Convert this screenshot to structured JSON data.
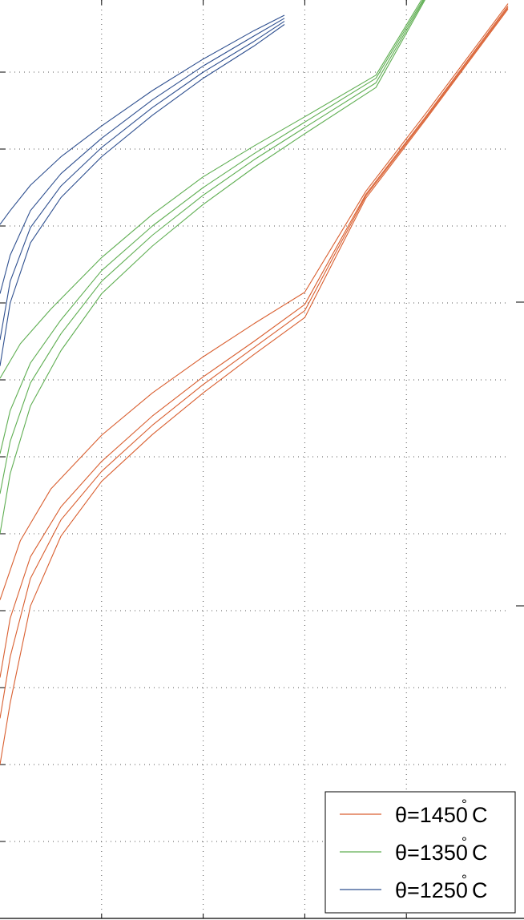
{
  "chart_data": {
    "type": "line",
    "title": "",
    "xlabel": "",
    "ylabel": "",
    "xlim": [
      0,
      5
    ],
    "ylim": [
      0,
      12
    ],
    "grid": true,
    "legend_position": "bottom-right",
    "legend": [
      {
        "label_prefix": "θ=1450",
        "degree_mark": "°",
        "label_suffix": "C",
        "color": "#d95f30"
      },
      {
        "label_prefix": "θ=1350",
        "degree_mark": "°",
        "label_suffix": "C",
        "color": "#5fae52"
      },
      {
        "label_prefix": "θ=1250",
        "degree_mark": "°",
        "label_suffix": "C",
        "color": "#2e4f8f"
      }
    ],
    "series": [
      {
        "group": "θ=1450°C",
        "color": "#d95f30",
        "points": [
          [
            0.0,
            4.14
          ],
          [
            0.2,
            4.91
          ],
          [
            0.5,
            5.58
          ],
          [
            1.0,
            6.28
          ],
          [
            1.5,
            6.83
          ],
          [
            2.0,
            7.3
          ],
          [
            2.5,
            7.73
          ],
          [
            3.0,
            8.14
          ],
          [
            3.6,
            9.45
          ],
          [
            4.2,
            10.48
          ],
          [
            5.0,
            11.89
          ]
        ]
      },
      {
        "group": "θ=1450°C",
        "color": "#d95f30",
        "points": [
          [
            0.0,
            3.13
          ],
          [
            0.1,
            3.9
          ],
          [
            0.3,
            4.7
          ],
          [
            0.6,
            5.35
          ],
          [
            1.0,
            5.94
          ],
          [
            1.5,
            6.53
          ],
          [
            2.0,
            7.04
          ],
          [
            2.5,
            7.5
          ],
          [
            3.0,
            7.98
          ],
          [
            3.6,
            9.41
          ],
          [
            4.2,
            10.44
          ],
          [
            5.0,
            11.86
          ]
        ]
      },
      {
        "group": "θ=1450°C",
        "color": "#d95f30",
        "points": [
          [
            0.0,
            2.6
          ],
          [
            0.1,
            3.4
          ],
          [
            0.3,
            4.42
          ],
          [
            0.6,
            5.18
          ],
          [
            1.0,
            5.81
          ],
          [
            1.5,
            6.41
          ],
          [
            2.0,
            6.94
          ],
          [
            2.5,
            7.42
          ],
          [
            3.0,
            7.9
          ],
          [
            3.6,
            9.39
          ],
          [
            4.2,
            10.42
          ],
          [
            5.0,
            11.84
          ]
        ]
      },
      {
        "group": "θ=1450°C",
        "color": "#d95f30",
        "points": [
          [
            0.0,
            2.0
          ],
          [
            0.1,
            2.8
          ],
          [
            0.3,
            4.06
          ],
          [
            0.6,
            4.97
          ],
          [
            1.0,
            5.68
          ],
          [
            1.5,
            6.29
          ],
          [
            2.0,
            6.83
          ],
          [
            2.5,
            7.33
          ],
          [
            3.0,
            7.81
          ],
          [
            3.6,
            9.36
          ],
          [
            4.2,
            10.4
          ],
          [
            5.0,
            11.82
          ]
        ]
      },
      {
        "group": "θ=1350°C",
        "color": "#5fae52",
        "points": [
          [
            0.0,
            7.02
          ],
          [
            0.2,
            7.47
          ],
          [
            0.5,
            7.92
          ],
          [
            1.0,
            8.59
          ],
          [
            1.5,
            9.15
          ],
          [
            2.0,
            9.64
          ],
          [
            2.5,
            10.04
          ],
          [
            3.0,
            10.42
          ],
          [
            3.7,
            10.96
          ],
          [
            4.2,
            12.05
          ]
        ]
      },
      {
        "group": "θ=1350°C",
        "color": "#5fae52",
        "points": [
          [
            0.0,
            6.04
          ],
          [
            0.1,
            6.6
          ],
          [
            0.3,
            7.22
          ],
          [
            0.6,
            7.78
          ],
          [
            1.0,
            8.42
          ],
          [
            1.5,
            9.0
          ],
          [
            2.0,
            9.5
          ],
          [
            2.5,
            9.94
          ],
          [
            3.0,
            10.35
          ],
          [
            3.7,
            10.92
          ],
          [
            4.2,
            12.02
          ]
        ]
      },
      {
        "group": "θ=1350°C",
        "color": "#5fae52",
        "points": [
          [
            0.0,
            5.52
          ],
          [
            0.1,
            6.2
          ],
          [
            0.3,
            6.96
          ],
          [
            0.6,
            7.6
          ],
          [
            1.0,
            8.28
          ],
          [
            1.5,
            8.88
          ],
          [
            2.0,
            9.4
          ],
          [
            2.5,
            9.86
          ],
          [
            3.0,
            10.28
          ],
          [
            3.7,
            10.86
          ],
          [
            4.2,
            12.0
          ]
        ]
      },
      {
        "group": "θ=1350°C",
        "color": "#5fae52",
        "points": [
          [
            0.0,
            5.0
          ],
          [
            0.1,
            5.78
          ],
          [
            0.3,
            6.66
          ],
          [
            0.6,
            7.38
          ],
          [
            1.0,
            8.12
          ],
          [
            1.5,
            8.74
          ],
          [
            2.0,
            9.28
          ],
          [
            2.5,
            9.76
          ],
          [
            3.0,
            10.2
          ],
          [
            3.7,
            10.8
          ],
          [
            4.2,
            11.98
          ]
        ]
      },
      {
        "group": "θ=1250°C",
        "color": "#2e4f8f",
        "points": [
          [
            0.0,
            9.02
          ],
          [
            0.1,
            9.2
          ],
          [
            0.3,
            9.53
          ],
          [
            0.6,
            9.9
          ],
          [
            1.0,
            10.3
          ],
          [
            1.5,
            10.76
          ],
          [
            2.0,
            11.17
          ],
          [
            2.5,
            11.54
          ],
          [
            2.8,
            11.74
          ]
        ]
      },
      {
        "group": "θ=1250°C",
        "color": "#2e4f8f",
        "points": [
          [
            0.0,
            8.12
          ],
          [
            0.1,
            8.62
          ],
          [
            0.3,
            9.2
          ],
          [
            0.6,
            9.68
          ],
          [
            1.0,
            10.14
          ],
          [
            1.5,
            10.64
          ],
          [
            2.0,
            11.08
          ],
          [
            2.5,
            11.47
          ],
          [
            2.8,
            11.7
          ]
        ]
      },
      {
        "group": "θ=1250°C",
        "color": "#2e4f8f",
        "points": [
          [
            0.0,
            7.52
          ],
          [
            0.1,
            8.28
          ],
          [
            0.3,
            8.98
          ],
          [
            0.6,
            9.52
          ],
          [
            1.0,
            10.02
          ],
          [
            1.5,
            10.54
          ],
          [
            2.0,
            11.0
          ],
          [
            2.5,
            11.4
          ],
          [
            2.8,
            11.66
          ]
        ]
      },
      {
        "group": "θ=1250°C",
        "color": "#2e4f8f",
        "points": [
          [
            0.0,
            7.18
          ],
          [
            0.1,
            8.0
          ],
          [
            0.3,
            8.78
          ],
          [
            0.6,
            9.37
          ],
          [
            1.0,
            9.9
          ],
          [
            1.5,
            10.44
          ],
          [
            2.0,
            10.92
          ],
          [
            2.5,
            11.34
          ],
          [
            2.8,
            11.62
          ]
        ]
      }
    ]
  }
}
